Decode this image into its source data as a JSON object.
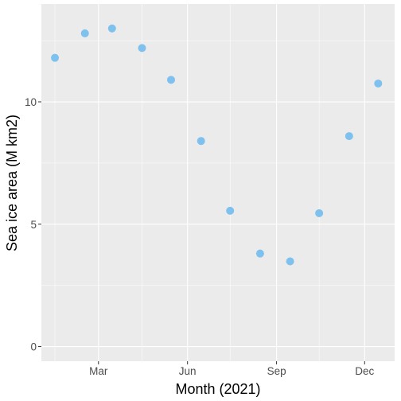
{
  "chart_data": {
    "type": "scatter",
    "xlabel": "Month (2021)",
    "ylabel": "Sea ice area (M km2)",
    "x": [
      "2021-01-15",
      "2021-02-15",
      "2021-03-15",
      "2021-04-15",
      "2021-05-15",
      "2021-06-15",
      "2021-07-15",
      "2021-08-15",
      "2021-09-15",
      "2021-10-15",
      "2021-11-15",
      "2021-12-15"
    ],
    "y": [
      11.8,
      12.8,
      13.0,
      12.2,
      10.9,
      8.4,
      5.55,
      3.8,
      3.48,
      5.45,
      8.6,
      10.75
    ],
    "x_ticks": [
      {
        "date": "2021-03-01",
        "label": "Mar"
      },
      {
        "date": "2021-06-01",
        "label": "Jun"
      },
      {
        "date": "2021-09-01",
        "label": "Sep"
      },
      {
        "date": "2021-12-01",
        "label": "Dec"
      }
    ],
    "x_minor_ticks": [
      "2021-01-15",
      "2021-04-15",
      "2021-07-15",
      "2021-10-15"
    ],
    "y_ticks": [
      0,
      5,
      10
    ],
    "y_minor_ticks": [
      2.5,
      7.5,
      12.5
    ],
    "xlim": [
      "2021-01-01",
      "2021-12-31"
    ],
    "ylim": [
      -0.6,
      14.0
    ],
    "grid": true,
    "legend": "none",
    "colors": {
      "point": "#7EC1EE",
      "panel": "#EBEBEB",
      "grid": "#FFFFFF",
      "tick_text": "#4D4D4D",
      "axis_title": "#000000"
    }
  }
}
